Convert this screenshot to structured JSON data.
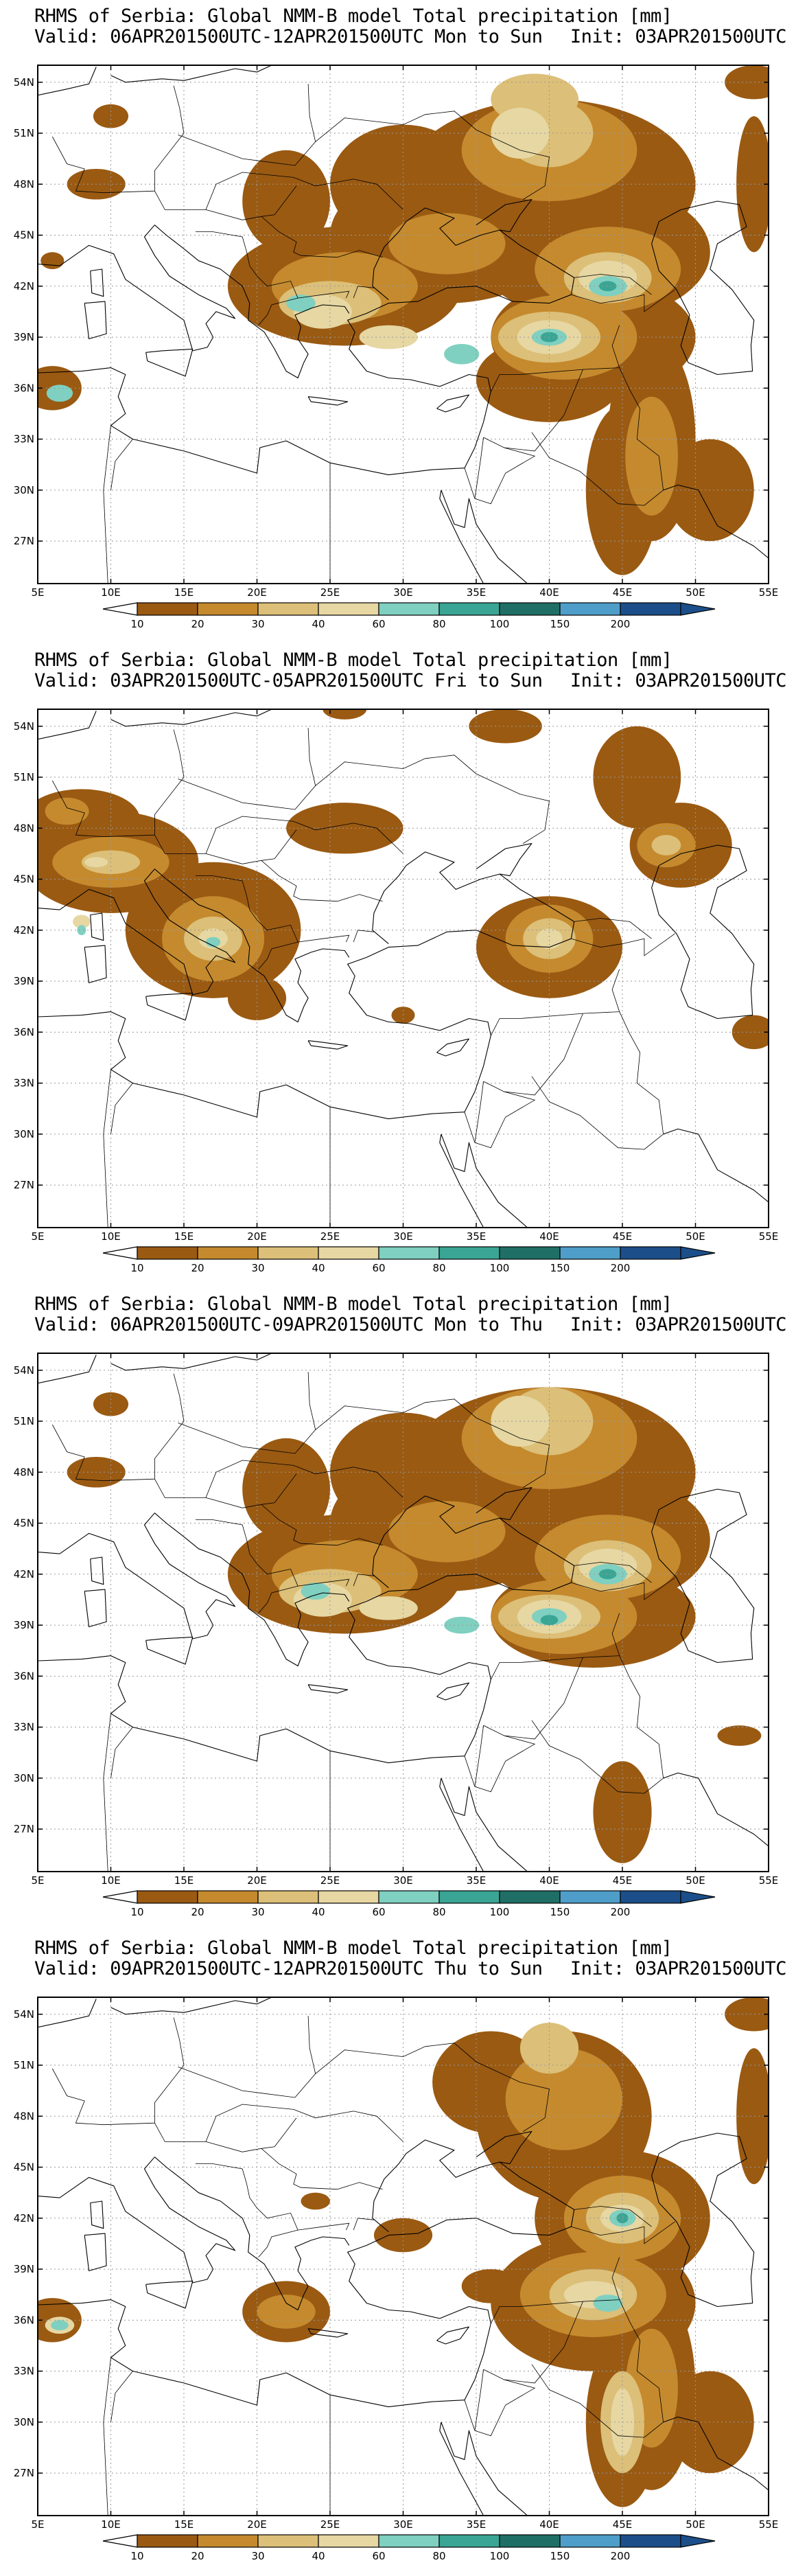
{
  "colors": {
    "c10": "#9a5a12",
    "c20": "#c58a2e",
    "c30": "#dcbf78",
    "c40": "#e6d7a3",
    "c60": "#7fd0c0",
    "c80": "#3aa594",
    "c100": "#1f6f66",
    "c150": "#4f9ec9",
    "c200": "#1c4f8a",
    "coast": "#000000",
    "grid": "#9a9a9a"
  },
  "map": {
    "lon_labels": [
      "5E",
      "10E",
      "15E",
      "20E",
      "25E",
      "30E",
      "35E",
      "40E",
      "45E",
      "50E",
      "55E"
    ],
    "lat_labels": [
      "54N",
      "51N",
      "48N",
      "45N",
      "42N",
      "39N",
      "36N",
      "33N",
      "30N",
      "27N"
    ],
    "lon_range": [
      5,
      55
    ],
    "lat_range": [
      24.5,
      55
    ]
  },
  "colorbar": {
    "labels": [
      "10",
      "20",
      "30",
      "40",
      "60",
      "80",
      "100",
      "150",
      "200"
    ]
  },
  "panels": [
    {
      "title1": "RHMS of Serbia: Global NMM-B model Total precipitation [mm]",
      "title2": "Valid: 06APR201500UTC-12APR201500UTC Mon to Sun",
      "init": "Init: 03APR201500UTC"
    },
    {
      "title1": "RHMS of Serbia: Global NMM-B model Total precipitation [mm]",
      "title2": "Valid: 03APR201500UTC-05APR201500UTC Fri to Sun",
      "init": "Init: 03APR201500UTC"
    },
    {
      "title1": "RHMS of Serbia: Global NMM-B model Total precipitation [mm]",
      "title2": "Valid: 06APR201500UTC-09APR201500UTC Mon to Thu",
      "init": "Init: 03APR201500UTC"
    },
    {
      "title1": "RHMS of Serbia: Global NMM-B model Total precipitation [mm]",
      "title2": "Valid: 09APR201500UTC-12APR201500UTC Thu to Sun",
      "init": "Init: 03APR201500UTC"
    }
  ]
}
